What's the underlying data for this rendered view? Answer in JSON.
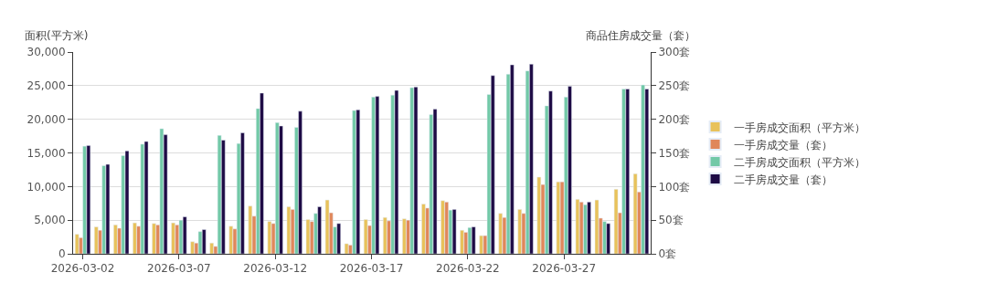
{
  "chart_data": {
    "type": "bar",
    "ylabel": "面积(平方米)",
    "y2label": "商品住房成交量（套）",
    "categories": [
      "2026-03-02",
      null,
      null,
      null,
      null,
      "2026-03-07",
      null,
      null,
      null,
      null,
      "2026-03-12",
      null,
      null,
      null,
      null,
      "2026-03-17",
      null,
      null,
      null,
      null,
      "2026-03-22",
      null,
      null,
      null,
      null,
      "2026-03-27",
      null,
      null,
      null,
      null
    ],
    "series": [
      {
        "name": "一手房成交面积（平方米）",
        "color": "#e8c25a",
        "values": [
          2900,
          4000,
          4300,
          4600,
          4500,
          4600,
          1800,
          1600,
          4100,
          7100,
          4800,
          7000,
          5100,
          8000,
          1500,
          5100,
          5400,
          5200,
          7400,
          7900,
          3500,
          2700,
          6000,
          6600,
          11400,
          10700,
          8100,
          8000,
          9600,
          11900
        ]
      },
      {
        "name": "一手房成交量（套）",
        "color": "#e0875a",
        "axis": "y2",
        "values": [
          24,
          35,
          38,
          41,
          43,
          43,
          16,
          11,
          37,
          56,
          45,
          66,
          48,
          61,
          13,
          42,
          49,
          50,
          68,
          77,
          32,
          27,
          54,
          60,
          103,
          107,
          77,
          53,
          61,
          92
        ]
      },
      {
        "name": "二手房成交面积（平方米）",
        "color": "#72c9a7",
        "values": [
          16000,
          13100,
          14600,
          16300,
          18600,
          5000,
          3300,
          17600,
          16400,
          21600,
          19500,
          18800,
          6000,
          4000,
          21300,
          23300,
          23600,
          24700,
          20700,
          6500,
          3900,
          23700,
          26700,
          27200,
          22000,
          23300,
          7300,
          4800,
          24500,
          25100
        ]
      },
      {
        "name": "二手房成交量（套）",
        "color": "#1e0b45",
        "axis": "y2",
        "values": [
          161,
          133,
          153,
          167,
          177,
          55,
          36,
          169,
          180,
          239,
          190,
          212,
          70,
          45,
          214,
          234,
          243,
          248,
          215,
          66,
          40,
          265,
          281,
          282,
          242,
          249,
          77,
          45,
          245,
          245
        ]
      }
    ],
    "ylim": [
      0,
      30000
    ],
    "yticks": [
      0,
      {
        "value": 5000,
        "label": "5,000"
      },
      {
        "value": 10000,
        "label": "10,000"
      },
      {
        "value": 15000,
        "label": "15,000"
      },
      {
        "value": 20000,
        "label": "20,000"
      },
      {
        "value": 25000,
        "label": "25,000"
      },
      {
        "value": 30000,
        "label": "30,000"
      }
    ],
    "y2lim": [
      0,
      300
    ],
    "y2ticks": [
      {
        "value": 0,
        "label": "0套"
      },
      {
        "value": 50,
        "label": "50套"
      },
      {
        "value": 100,
        "label": "100套"
      },
      {
        "value": 150,
        "label": "150套"
      },
      {
        "value": 200,
        "label": "200套"
      },
      {
        "value": 250,
        "label": "250套"
      },
      {
        "value": 300,
        "label": "300套"
      }
    ],
    "grid": "y",
    "legend": "right"
  }
}
